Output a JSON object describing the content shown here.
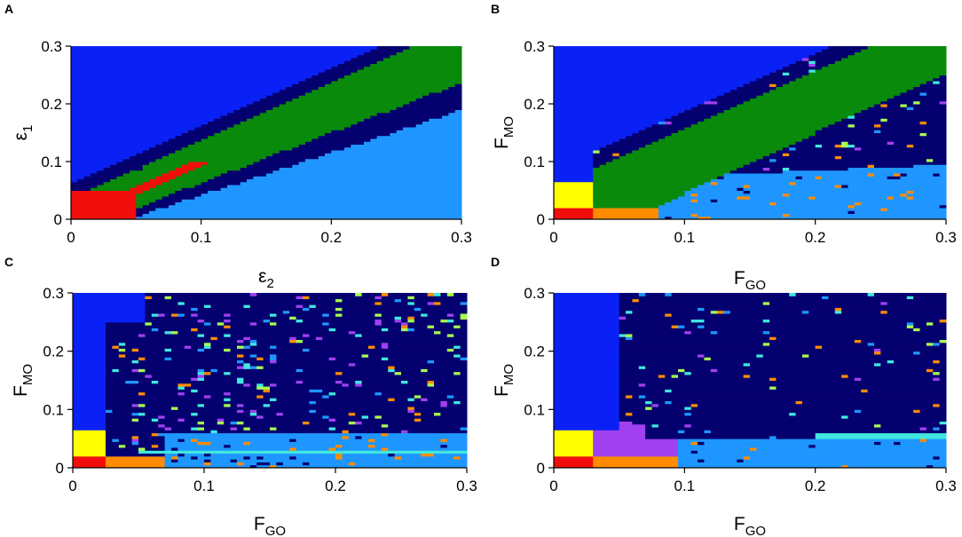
{
  "figure": {
    "panels": [
      "A",
      "B",
      "C",
      "D"
    ]
  },
  "colors": {
    "bright_blue": "#0a21f5",
    "navy": "#05006f",
    "green": "#0a8a0a",
    "light_blue": "#1f96ff",
    "red": "#f20d0d",
    "yellow": "#ffff00",
    "orange": "#ff8c00",
    "purple": "#a040f0",
    "lime": "#a8ff50",
    "cyan": "#40e8e0",
    "mint": "#60ffa0",
    "white": "#ffffff"
  },
  "chart_data": [
    {
      "type": "heatmap",
      "panel": "A",
      "xlabel": {
        "base": "ε",
        "sub": "2"
      },
      "ylabel": {
        "base": "ε",
        "sub": "1"
      },
      "xlim": [
        0,
        0.3
      ],
      "ylim": [
        0,
        0.3
      ],
      "xticks": [
        "0",
        "0.1",
        "0.2",
        "0.3"
      ],
      "yticks": [
        "0",
        "0.1",
        "0.2",
        "0.3"
      ],
      "grid": false,
      "regions": [
        {
          "color": "bright_blue",
          "description": "upper-left region above the diagonal band"
        },
        {
          "color": "navy",
          "description": "thin band bordering the green band on both sides"
        },
        {
          "color": "green",
          "description": "diagonal band from (0.03,0.05) to (0.3,0.3)"
        },
        {
          "color": "light_blue",
          "description": "lower-right region below the band, x > 0.05"
        },
        {
          "color": "red",
          "description": "corner block x 0-0.05, y 0-0.05, thin streak to (0.1,0.1)"
        }
      ]
    },
    {
      "type": "heatmap",
      "panel": "B",
      "xlabel": {
        "base": "F",
        "sub": "GO"
      },
      "ylabel": {
        "base": "F",
        "sub": "MO"
      },
      "xlim": [
        0,
        0.3
      ],
      "ylim": [
        0,
        0.3
      ],
      "xticks": [
        "0",
        "0.1",
        "0.2",
        "0.3"
      ],
      "yticks": [
        "0",
        "0.1",
        "0.2",
        "0.3"
      ],
      "grid": false,
      "regions": [
        {
          "color": "bright_blue",
          "description": "upper-left region"
        },
        {
          "color": "navy",
          "description": "band bordering the green band and upper-right area"
        },
        {
          "color": "green",
          "description": "wide diagonal band from (0.03,0) to (0.3,0.3)"
        },
        {
          "color": "light_blue",
          "description": "bottom strip y < 0.07 for x > 0.08"
        },
        {
          "color": "yellow",
          "description": "block x 0-0.03, y 0.02-0.07"
        },
        {
          "color": "orange",
          "description": "block x 0.03-0.08, y 0-0.02"
        },
        {
          "color": "red",
          "description": "block x 0-0.03, y 0-0.02"
        }
      ]
    },
    {
      "type": "heatmap",
      "panel": "C",
      "xlabel": {
        "base": "F",
        "sub": "GO"
      },
      "ylabel": {
        "base": "F",
        "sub": "MO"
      },
      "xlim": [
        0,
        0.3
      ],
      "ylim": [
        0,
        0.3
      ],
      "xticks": [
        "0",
        "0.1",
        "0.2",
        "0.3"
      ],
      "yticks": [
        "0",
        "0.1",
        "0.2",
        "0.3"
      ],
      "grid": false,
      "regions": [
        {
          "color": "bright_blue",
          "description": "left column x < 0.03"
        },
        {
          "color": "navy",
          "description": "main region"
        },
        {
          "color": "light_blue",
          "description": "lower strip y < 0.07 for x > 0.07"
        },
        {
          "color": "cyan",
          "description": "thin horizontal line at y ~ 0.03 from x 0.05 to 0.3"
        },
        {
          "color": "yellow",
          "description": "block x 0-0.025, y 0.02-0.065"
        },
        {
          "color": "orange",
          "description": "block x 0.025-0.07, y 0-0.02"
        },
        {
          "color": "red",
          "description": "block x 0-0.025, y 0-0.02 and streak column at x ~ 0.03"
        }
      ]
    },
    {
      "type": "heatmap",
      "panel": "D",
      "xlabel": {
        "base": "F",
        "sub": "GO"
      },
      "ylabel": {
        "base": "F",
        "sub": "MO"
      },
      "xlim": [
        0,
        0.3
      ],
      "ylim": [
        0,
        0.3
      ],
      "xticks": [
        "0",
        "0.1",
        "0.2",
        "0.3"
      ],
      "yticks": [
        "0",
        "0.1",
        "0.2",
        "0.3"
      ],
      "grid": false,
      "regions": [
        {
          "color": "bright_blue",
          "description": "left column x < 0.052"
        },
        {
          "color": "navy",
          "description": "main region"
        },
        {
          "color": "light_blue",
          "description": "lower strip y < 0.05 for x > 0.095"
        },
        {
          "color": "cyan",
          "description": "thin horizontal line at y ~ 0.055 from x 0.2 to 0.3"
        },
        {
          "color": "purple",
          "description": "block x 0.03-0.07, y 0.02-0.09"
        },
        {
          "color": "yellow",
          "description": "block x 0-0.03, y 0.02-0.065"
        },
        {
          "color": "orange",
          "description": "block x 0.03-0.095, y 0-0.02"
        },
        {
          "color": "red",
          "description": "block x 0-0.03, y 0-0.02"
        }
      ]
    }
  ]
}
